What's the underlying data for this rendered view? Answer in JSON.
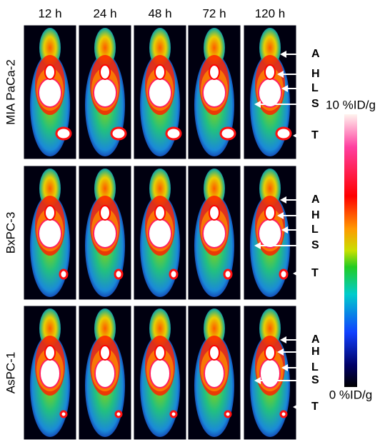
{
  "column_headers": [
    "12 h",
    "24 h",
    "48 h",
    "72 h",
    "120 h"
  ],
  "rows": [
    {
      "label": "MIA PaCa-2",
      "annotations": [
        "A",
        "H",
        "L",
        "S",
        "T"
      ]
    },
    {
      "label": "BxPC-3",
      "annotations": [
        "A",
        "H",
        "L",
        "S",
        "T"
      ]
    },
    {
      "label": "AsPC-1",
      "annotations": [
        "A",
        "H",
        "L",
        "S",
        "T"
      ]
    }
  ],
  "colorbar": {
    "max_label": "10 %ID/g",
    "min_label": "0 %ID/g"
  }
}
